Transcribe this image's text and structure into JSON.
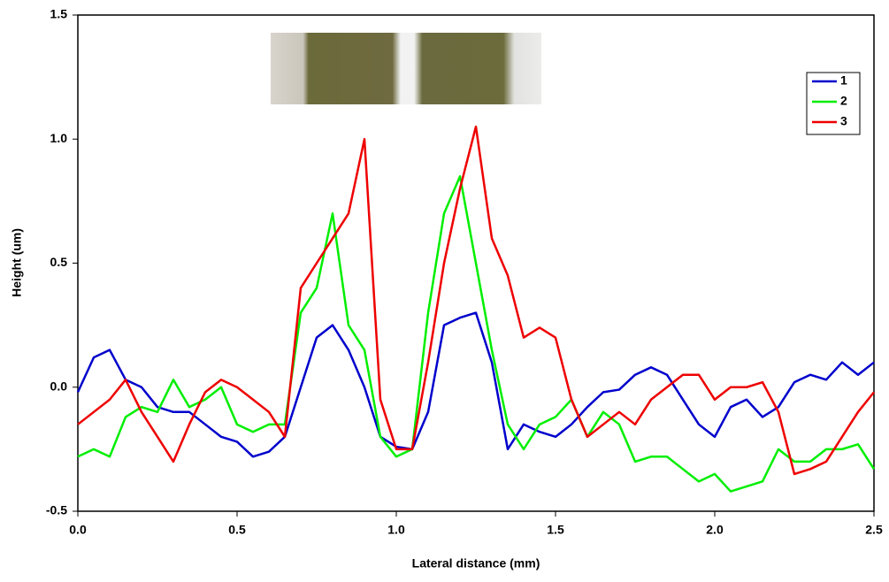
{
  "chart_data": {
    "type": "line",
    "x_label": "Lateral distance (mm)",
    "y_label": "Height (um)",
    "x": [
      0,
      0.05,
      0.1,
      0.15,
      0.2,
      0.25,
      0.3,
      0.35,
      0.4,
      0.45,
      0.5,
      0.55,
      0.6,
      0.65,
      0.7,
      0.75,
      0.8,
      0.85,
      0.9,
      0.95,
      1.0,
      1.05,
      1.1,
      1.15,
      1.2,
      1.25,
      1.3,
      1.35,
      1.4,
      1.45,
      1.5,
      1.55,
      1.6,
      1.65,
      1.7,
      1.75,
      1.8,
      1.85,
      1.9,
      1.95,
      2.0,
      2.05,
      2.1,
      2.15,
      2.2,
      2.25,
      2.3,
      2.35,
      2.4,
      2.45,
      2.5
    ],
    "series": [
      {
        "name": "1",
        "color": "#0000cc",
        "values": [
          -0.02,
          0.12,
          0.15,
          0.03,
          0.0,
          -0.08,
          -0.1,
          -0.1,
          -0.15,
          -0.2,
          -0.22,
          -0.28,
          -0.26,
          -0.2,
          0.0,
          0.2,
          0.25,
          0.15,
          0.0,
          -0.2,
          -0.24,
          -0.25,
          -0.1,
          0.25,
          0.28,
          0.3,
          0.1,
          -0.25,
          -0.15,
          -0.18,
          -0.2,
          -0.15,
          -0.08,
          -0.02,
          -0.01,
          0.05,
          0.08,
          0.05,
          -0.05,
          -0.15,
          -0.2,
          -0.08,
          -0.05,
          -0.12,
          -0.08,
          0.02,
          0.05,
          0.03,
          0.1,
          0.05,
          0.1
        ]
      },
      {
        "name": "2",
        "color": "#00ee00",
        "values": [
          -0.28,
          -0.25,
          -0.28,
          -0.12,
          -0.08,
          -0.1,
          0.03,
          -0.08,
          -0.05,
          0.0,
          -0.15,
          -0.18,
          -0.15,
          -0.15,
          0.3,
          0.4,
          0.7,
          0.25,
          0.15,
          -0.2,
          -0.28,
          -0.25,
          0.3,
          0.7,
          0.85,
          0.5,
          0.15,
          -0.15,
          -0.25,
          -0.15,
          -0.12,
          -0.05,
          -0.2,
          -0.1,
          -0.15,
          -0.3,
          -0.28,
          -0.28,
          -0.33,
          -0.38,
          -0.35,
          -0.42,
          -0.4,
          -0.38,
          -0.25,
          -0.3,
          -0.3,
          -0.25,
          -0.25,
          -0.23,
          -0.33
        ]
      },
      {
        "name": "3",
        "color": "#ee0000",
        "values": [
          -0.15,
          -0.1,
          -0.05,
          0.03,
          -0.1,
          -0.2,
          -0.3,
          -0.15,
          -0.02,
          0.03,
          0.0,
          -0.05,
          -0.1,
          -0.2,
          0.4,
          0.5,
          0.6,
          0.7,
          1.0,
          -0.05,
          -0.25,
          -0.25,
          0.1,
          0.5,
          0.8,
          1.05,
          0.6,
          0.45,
          0.2,
          0.24,
          0.2,
          -0.05,
          -0.2,
          -0.15,
          -0.1,
          -0.15,
          -0.05,
          0.0,
          0.05,
          0.05,
          -0.05,
          0.0,
          0.0,
          0.02,
          -0.1,
          -0.35,
          -0.33,
          -0.3,
          -0.2,
          -0.1,
          -0.02
        ]
      }
    ],
    "xlim": [
      0,
      2.5
    ],
    "ylim": [
      -0.5,
      1.5
    ],
    "xticks": [
      {
        "value": 0,
        "label": "0.0"
      },
      0.5,
      {
        "value": 1,
        "label": "1.0"
      },
      1.5,
      {
        "value": 2,
        "label": "2.0"
      },
      2.5
    ],
    "yticks": [
      -0.5,
      {
        "value": 0,
        "label": "0.0"
      },
      0.5,
      {
        "value": 1,
        "label": "1.0"
      },
      1.5
    ],
    "legend": "upper right"
  }
}
